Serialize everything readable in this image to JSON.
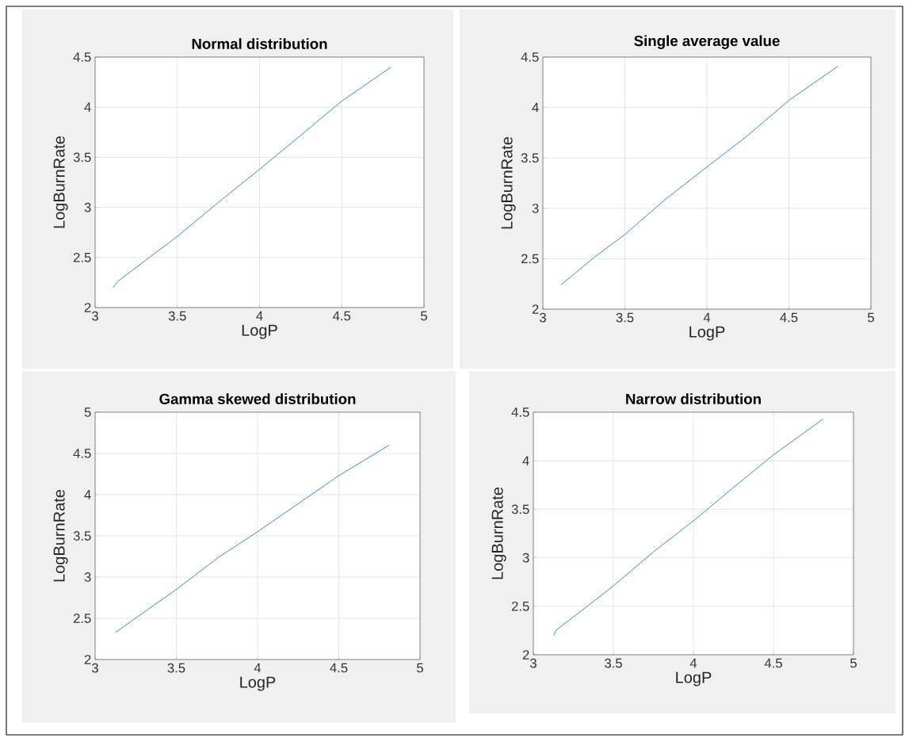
{
  "chart_data": [
    {
      "type": "line",
      "title": "Normal distribution",
      "xlabel": "LogP",
      "ylabel": "LogBurnRate",
      "color": "#0072bd",
      "xlim": [
        3,
        5
      ],
      "ylim": [
        2,
        4.5
      ],
      "xticks": [
        3,
        3.5,
        4,
        4.5,
        5
      ],
      "yticks": [
        2,
        2.5,
        3,
        3.5,
        4,
        4.5
      ],
      "grid": true,
      "x": [
        3.11,
        3.137,
        3.306,
        3.5,
        3.75,
        4,
        4.23,
        4.5,
        4.8
      ],
      "values": [
        2.2,
        2.26,
        2.47,
        2.71,
        3.05,
        3.38,
        3.69,
        4.06,
        4.4
      ]
    },
    {
      "type": "line",
      "title": "Single average value",
      "xlabel": "LogP",
      "ylabel": "LogBurnRate",
      "color": "#0072bd",
      "xlim": [
        3,
        5
      ],
      "ylim": [
        2,
        4.5
      ],
      "xticks": [
        3,
        3.5,
        4,
        4.5,
        5
      ],
      "yticks": [
        2,
        2.5,
        3,
        3.5,
        4,
        4.5
      ],
      "grid": true,
      "x": [
        3.11,
        3.31,
        3.5,
        3.74,
        4,
        4.24,
        4.5,
        4.8
      ],
      "values": [
        2.24,
        2.51,
        2.74,
        3.08,
        3.41,
        3.71,
        4.07,
        4.41
      ]
    },
    {
      "type": "line",
      "title": "Gamma skewed distribution",
      "xlabel": "LogP",
      "ylabel": "LogBurnRate",
      "color": "#0072bd",
      "xlim": [
        3,
        5
      ],
      "ylim": [
        2,
        5
      ],
      "xticks": [
        3,
        3.5,
        4,
        4.5,
        5
      ],
      "yticks": [
        2,
        2.5,
        3,
        3.5,
        4,
        4.5,
        5
      ],
      "grid": true,
      "x": [
        3.126,
        3.32,
        3.5,
        3.76,
        4,
        4.25,
        4.5,
        4.81
      ],
      "values": [
        2.33,
        2.6,
        2.85,
        3.24,
        3.55,
        3.89,
        4.23,
        4.6
      ]
    },
    {
      "type": "line",
      "title": "Narrow distribution",
      "xlabel": "LogP",
      "ylabel": "LogBurnRate",
      "color": "#0072bd",
      "xlim": [
        3,
        5
      ],
      "ylim": [
        2,
        4.5
      ],
      "xticks": [
        3,
        3.5,
        4,
        4.5,
        5
      ],
      "yticks": [
        2,
        2.5,
        3,
        3.5,
        4,
        4.5
      ],
      "grid": true,
      "x": [
        3.128,
        3.14,
        3.29,
        3.5,
        3.75,
        4,
        4.24,
        4.5,
        4.81
      ],
      "values": [
        2.2,
        2.25,
        2.44,
        2.71,
        3.06,
        3.38,
        3.71,
        4.06,
        4.43
      ]
    }
  ]
}
